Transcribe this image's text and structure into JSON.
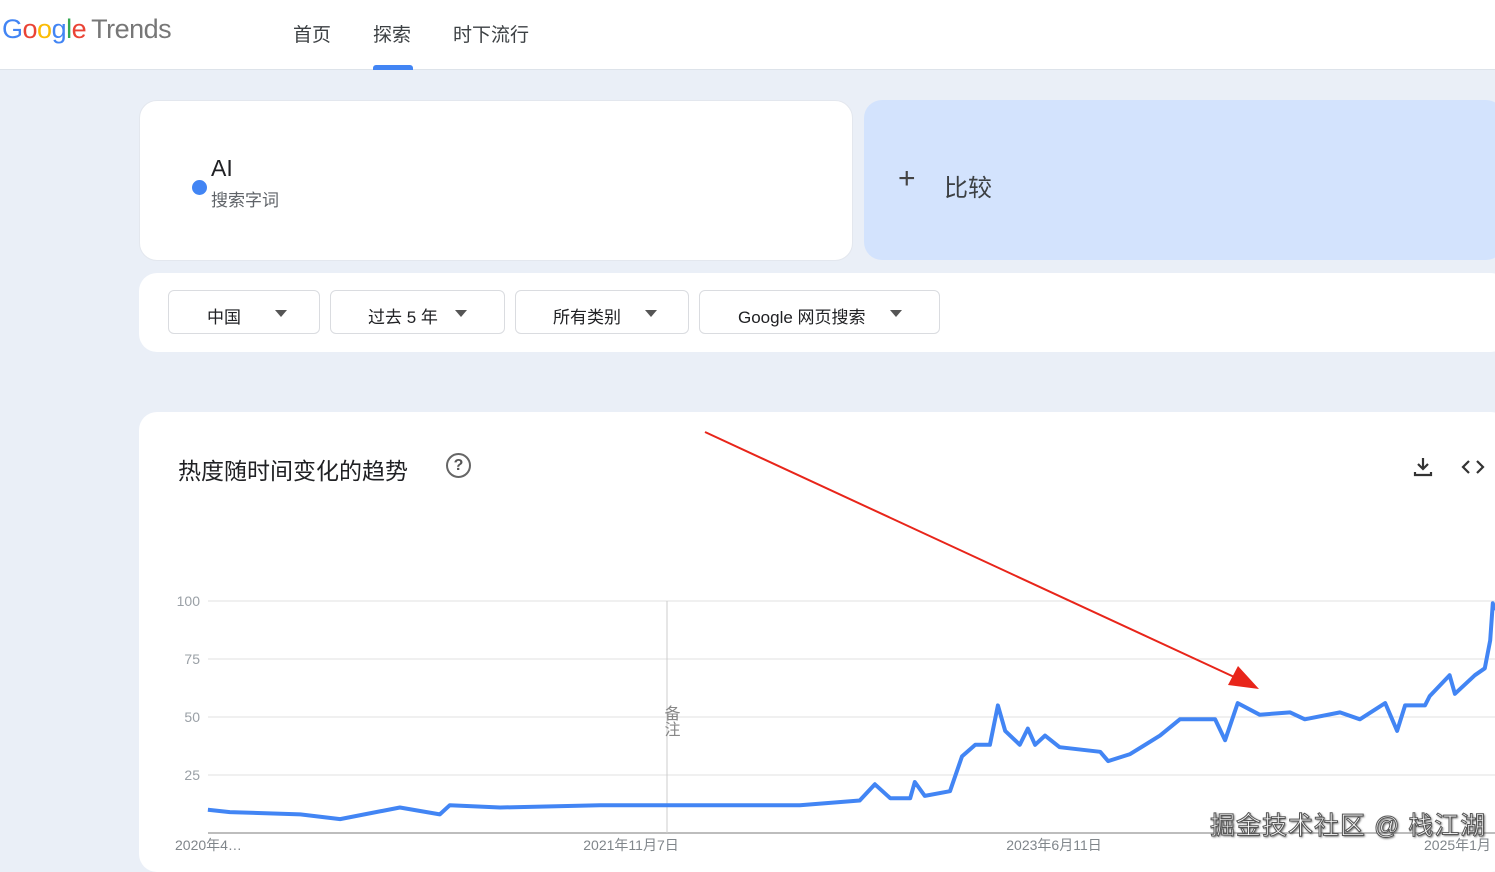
{
  "header": {
    "logo": {
      "google": "Google",
      "trends": "Trends"
    },
    "nav": [
      {
        "label": "首页"
      },
      {
        "label": "探索",
        "active": true
      },
      {
        "label": "时下流行"
      }
    ],
    "accent": "#4285f4"
  },
  "search": {
    "term": "AI",
    "term_type": "搜索字词",
    "term_color": "#4285f4",
    "compare_label": "比较",
    "compare_icon": "plus-icon"
  },
  "filters": [
    {
      "label": "中国"
    },
    {
      "label": "过去 5 年"
    },
    {
      "label": "所有类别"
    },
    {
      "label": "Google 网页搜索"
    }
  ],
  "chart_card": {
    "title": "热度随时间变化的趋势",
    "help_icon": "help-circle-icon",
    "download_icon": "download-icon",
    "embed_icon": "code-icon"
  },
  "chart_data": {
    "type": "line",
    "ylim": [
      0,
      100
    ],
    "yticks": [
      25,
      50,
      75,
      100
    ],
    "grid": true,
    "xtick_labels": [
      "2020年4…",
      "2021年11月7日",
      "2023年6月11日",
      "2025年1月"
    ],
    "annotation_label": "备注",
    "annotation_date": "2021-11-07",
    "series": [
      {
        "color": "#4285f4",
        "points": [
          [
            "2019-12-17",
            10
          ],
          [
            "2020-01-19",
            9
          ],
          [
            "2020-05-04",
            8
          ],
          [
            "2020-07-03",
            6
          ],
          [
            "2020-10-01",
            11
          ],
          [
            "2020-11-30",
            8
          ],
          [
            "2020-12-15",
            12
          ],
          [
            "2021-03-01",
            11
          ],
          [
            "2021-07-29",
            12
          ],
          [
            "2021-12-27",
            12
          ],
          [
            "2022-05-26",
            12
          ],
          [
            "2022-08-24",
            14
          ],
          [
            "2022-09-16",
            21
          ],
          [
            "2022-10-09",
            15
          ],
          [
            "2022-11-08",
            15
          ],
          [
            "2022-11-15",
            22
          ],
          [
            "2022-11-30",
            16
          ],
          [
            "2023-01-07",
            18
          ],
          [
            "2023-01-25",
            33
          ],
          [
            "2023-02-14",
            38
          ],
          [
            "2023-03-08",
            38
          ],
          [
            "2023-03-20",
            55
          ],
          [
            "2023-03-31",
            44
          ],
          [
            "2023-04-22",
            38
          ],
          [
            "2023-05-04",
            45
          ],
          [
            "2023-05-15",
            38
          ],
          [
            "2023-05-30",
            42
          ],
          [
            "2023-06-21",
            37
          ],
          [
            "2023-08-21",
            35
          ],
          [
            "2023-09-02",
            31
          ],
          [
            "2023-10-05",
            34
          ],
          [
            "2023-11-19",
            42
          ],
          [
            "2023-12-19",
            49
          ],
          [
            "2024-02-10",
            49
          ],
          [
            "2024-02-25",
            40
          ],
          [
            "2024-03-15",
            56
          ],
          [
            "2024-04-17",
            51
          ],
          [
            "2024-06-02",
            52
          ],
          [
            "2024-06-24",
            49
          ],
          [
            "2024-08-16",
            52
          ],
          [
            "2024-09-15",
            49
          ],
          [
            "2024-10-23",
            56
          ],
          [
            "2024-11-10",
            44
          ],
          [
            "2024-11-22",
            55
          ],
          [
            "2024-12-22",
            55
          ],
          [
            "2024-12-29",
            59
          ],
          [
            "2025-01-28",
            68
          ],
          [
            "2025-02-05",
            60
          ],
          [
            "2025-03-07",
            68
          ],
          [
            "2025-03-22",
            71
          ],
          [
            "2025-03-30",
            83
          ],
          [
            "2025-04-03",
            99
          ],
          [
            "2025-04-06",
            96
          ]
        ]
      }
    ]
  },
  "watermark": "掘金技术社区 @ 栈江湖",
  "arrow_color": "#e8251a"
}
